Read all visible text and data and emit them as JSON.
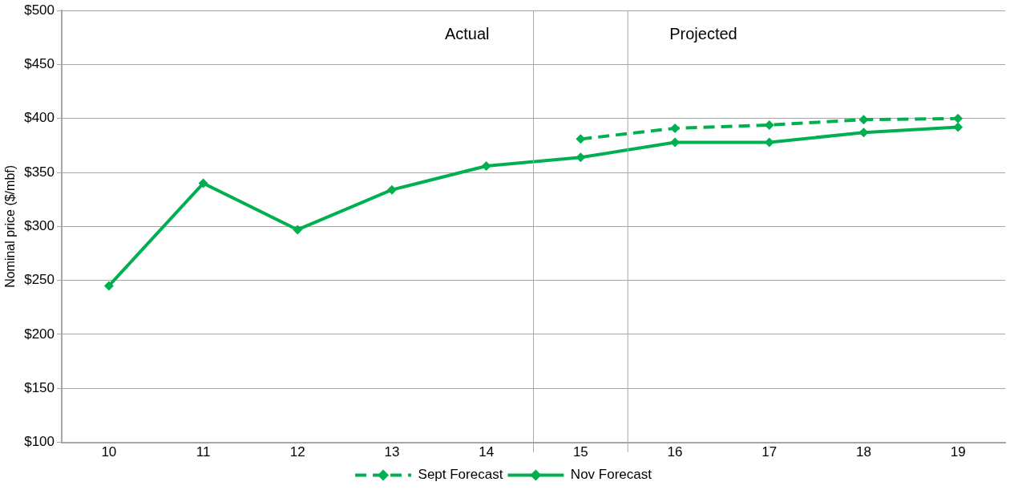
{
  "chart_data": {
    "type": "line",
    "ylabel": "Nominal price ($/mbf)",
    "x": [
      10,
      11,
      12,
      13,
      14,
      15,
      16,
      17,
      18,
      19
    ],
    "xlim": [
      9.5,
      19.5
    ],
    "xticks": [
      10,
      11,
      12,
      13,
      14,
      15,
      16,
      17,
      18,
      19
    ],
    "ylim": [
      100,
      500
    ],
    "yticks": [
      {
        "value": 100,
        "label": "$100"
      },
      {
        "value": 150,
        "label": "$150"
      },
      {
        "value": 200,
        "label": "$200"
      },
      {
        "value": 250,
        "label": "$250"
      },
      {
        "value": 300,
        "label": "$300"
      },
      {
        "value": 350,
        "label": "$350"
      },
      {
        "value": 400,
        "label": "$400"
      },
      {
        "value": 450,
        "label": "$450"
      },
      {
        "value": 500,
        "label": "$500"
      }
    ],
    "series": [
      {
        "name": "Sept Forecast",
        "color": "#00b050",
        "line_style": "dashed",
        "values": [
          null,
          null,
          null,
          null,
          null,
          381,
          391,
          394,
          399,
          400
        ]
      },
      {
        "name": "Nov Forecast",
        "color": "#00b050",
        "line_style": "solid",
        "values": [
          245,
          340,
          297,
          334,
          356,
          364,
          378,
          378,
          387,
          392
        ]
      }
    ],
    "ref_lines": [
      {
        "axis": "x",
        "value": 14.5,
        "color": "#a6a6a6"
      },
      {
        "axis": "x",
        "value": 15.5,
        "color": "#a6a6a6"
      }
    ],
    "annotations": [
      "Actual",
      "Projected"
    ],
    "marker": "diamond",
    "grid": "y",
    "legend": "bottom"
  }
}
